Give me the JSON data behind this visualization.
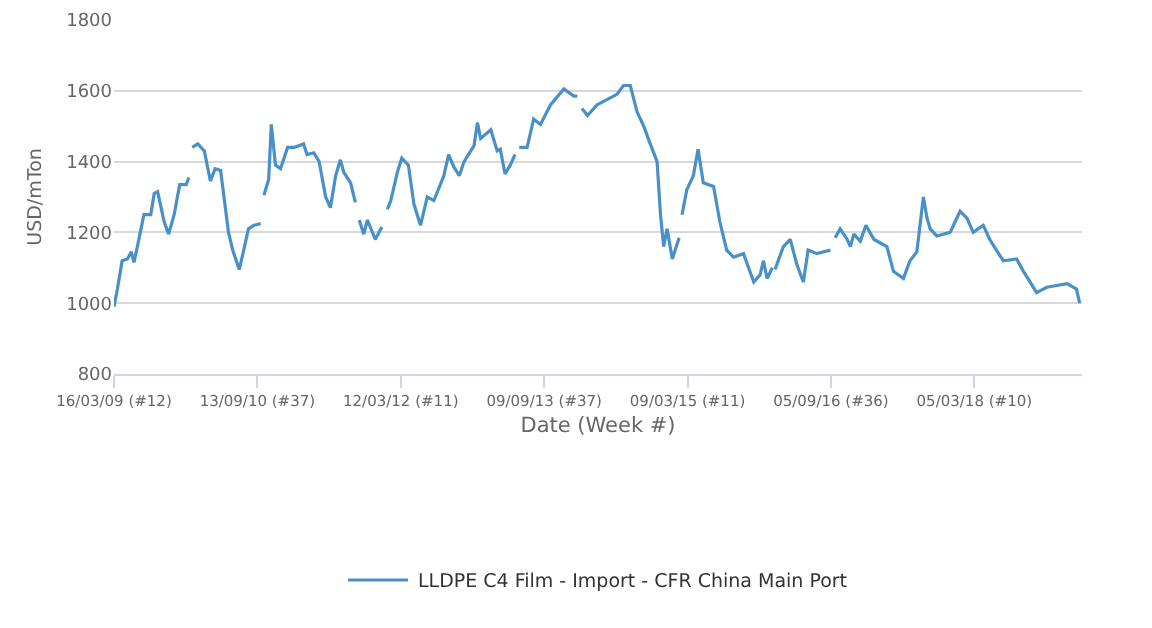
{
  "chart_data": {
    "type": "line",
    "xlabel": "Date (Week #)",
    "ylabel": "USD/mTon",
    "xlim": [
      "2009-03-16",
      "2019-04-19"
    ],
    "ylim": [
      800,
      1800
    ],
    "yticks": [
      800,
      1000,
      1200,
      1400,
      1600,
      1800
    ],
    "xticks": [
      {
        "value": "2009-03-16",
        "label": "16/03/09 (#12)"
      },
      {
        "value": "2010-09-13",
        "label": "13/09/10 (#37)"
      },
      {
        "value": "2012-03-12",
        "label": "12/03/12 (#11)"
      },
      {
        "value": "2013-09-09",
        "label": "09/09/13 (#37)"
      },
      {
        "value": "2015-03-09",
        "label": "09/03/15 (#11)"
      },
      {
        "value": "2016-09-05",
        "label": "05/09/16 (#36)"
      },
      {
        "value": "2018-03-05",
        "label": "05/03/18 (#10)"
      }
    ],
    "grid": "y",
    "legend": "bottom",
    "marker": "none",
    "line_style": "solid",
    "x": [
      "2009-03-16",
      "2009-03-29",
      "2009-04-16",
      "2009-05-06",
      "2009-05-21",
      "2009-05-31",
      "2009-06-13",
      "2009-07-08",
      "2009-08-03",
      "2009-08-16",
      "2009-08-29",
      "2009-09-23",
      "2009-10-10",
      "2009-10-31",
      "2009-11-21",
      "2009-12-16",
      "2009-12-26",
      "2010-01-02",
      "2010-01-08",
      "2010-01-29",
      "2010-02-23",
      "2010-03-18",
      "2010-04-05",
      "2010-04-26",
      "2010-05-26",
      "2010-06-11",
      "2010-07-06",
      "2010-07-23",
      "2010-08-10",
      "2010-08-31",
      "2010-09-26",
      "2010-09-30",
      "2010-10-08",
      "2010-10-26",
      "2010-11-05",
      "2010-11-21",
      "2010-12-10",
      "2011-01-06",
      "2011-01-31",
      "2011-03-08",
      "2011-03-21",
      "2011-04-16",
      "2011-05-06",
      "2011-05-31",
      "2011-06-18",
      "2011-07-08",
      "2011-07-26",
      "2011-08-08",
      "2011-09-03",
      "2011-09-21",
      "2011-09-26",
      "2011-10-06",
      "2011-10-23",
      "2011-11-06",
      "2011-12-06",
      "2011-12-31",
      "2012-01-06",
      "2012-01-21",
      "2012-02-03",
      "2012-02-28",
      "2012-03-16",
      "2012-04-10",
      "2012-05-01",
      "2012-05-26",
      "2012-06-21",
      "2012-07-16",
      "2012-08-23",
      "2012-09-10",
      "2012-09-30",
      "2012-10-21",
      "2012-11-08",
      "2012-12-16",
      "2012-12-29",
      "2013-01-10",
      "2013-02-18",
      "2013-03-14",
      "2013-03-26",
      "2013-04-13",
      "2013-05-03",
      "2013-05-21",
      "2013-05-28",
      "2013-06-06",
      "2013-07-06",
      "2013-07-31",
      "2013-08-26",
      "2013-10-03",
      "2013-11-23",
      "2013-12-31",
      "2014-01-13",
      "2014-01-20",
      "2014-01-31",
      "2014-02-21",
      "2014-03-29",
      "2014-05-06",
      "2014-06-13",
      "2014-07-08",
      "2014-08-03",
      "2014-08-29",
      "2014-09-23",
      "2014-10-18",
      "2014-11-13",
      "2014-11-26",
      "2014-12-08",
      "2014-12-21",
      "2015-01-10",
      "2015-02-05",
      "2015-02-10",
      "2015-02-16",
      "2015-03-06",
      "2015-03-31",
      "2015-04-18",
      "2015-05-08",
      "2015-06-16",
      "2015-07-10",
      "2015-08-05",
      "2015-08-31",
      "2015-10-08",
      "2015-11-16",
      "2015-12-10",
      "2015-12-23",
      "2016-01-06",
      "2016-01-26",
      "2016-01-30",
      "2016-02-05",
      "2016-03-08",
      "2016-04-03",
      "2016-04-28",
      "2016-05-23",
      "2016-06-10",
      "2016-07-13",
      "2016-09-03",
      "2016-09-08",
      "2016-09-21",
      "2016-10-10",
      "2016-11-06",
      "2016-11-18",
      "2016-12-01",
      "2016-12-26",
      "2017-01-16",
      "2017-02-16",
      "2017-04-06",
      "2017-05-01",
      "2017-06-08",
      "2017-07-03",
      "2017-07-29",
      "2017-08-23",
      "2017-09-06",
      "2017-09-18",
      "2017-10-13",
      "2017-12-03",
      "2017-12-28",
      "2018-01-10",
      "2018-02-05",
      "2018-03-01",
      "2018-04-08",
      "2018-05-03",
      "2018-05-28",
      "2018-06-23",
      "2018-08-13",
      "2018-09-08",
      "2018-10-03",
      "2018-10-28",
      "2018-12-06",
      "2019-01-13",
      "2019-02-21",
      "2019-03-29",
      "2019-04-10"
    ],
    "series": [
      {
        "name": "LLDPE C4 Film - Import - CFR China Main Port",
        "color": "#4a90c8",
        "values": [
          990,
          1040,
          1120,
          1125,
          1145,
          1115,
          1160,
          1250,
          1250,
          1310,
          1315,
          1230,
          1195,
          1250,
          1335,
          1335,
          1355,
          null,
          1440,
          1450,
          1430,
          1345,
          1380,
          1375,
          1200,
          1150,
          1095,
          1150,
          1210,
          1220,
          1225,
          null,
          1305,
          1350,
          1505,
          1390,
          1380,
          1440,
          1440,
          1450,
          1420,
          1425,
          1400,
          1300,
          1270,
          1360,
          1405,
          1370,
          1340,
          1285,
          null,
          1235,
          1195,
          1235,
          1180,
          1215,
          null,
          1265,
          1290,
          1370,
          1410,
          1390,
          1280,
          1220,
          1300,
          1290,
          1360,
          1420,
          1385,
          1360,
          1400,
          1445,
          1510,
          1465,
          1490,
          1430,
          1435,
          1365,
          1390,
          1420,
          null,
          1440,
          1440,
          1520,
          1505,
          1560,
          1605,
          1585,
          1585,
          null,
          1550,
          1530,
          1560,
          1575,
          1590,
          1615,
          1615,
          1540,
          1500,
          1450,
          1400,
          1250,
          1160,
          1210,
          1125,
          1185,
          null,
          1250,
          1320,
          1360,
          1435,
          1340,
          1330,
          1230,
          1150,
          1130,
          1140,
          1060,
          1080,
          1120,
          1070,
          1100,
          null,
          1095,
          1160,
          1180,
          1110,
          1060,
          1150,
          1140,
          1150,
          null,
          1185,
          1210,
          1180,
          1160,
          1195,
          1175,
          1220,
          1180,
          1160,
          1090,
          1070,
          1120,
          1145,
          1300,
          1240,
          1210,
          1190,
          1200,
          1240,
          1260,
          1240,
          1200,
          1220,
          1180,
          1150,
          1120,
          1125,
          1090,
          1060,
          1030,
          1045,
          1050,
          1055,
          1040,
          1000
        ]
      }
    ]
  }
}
